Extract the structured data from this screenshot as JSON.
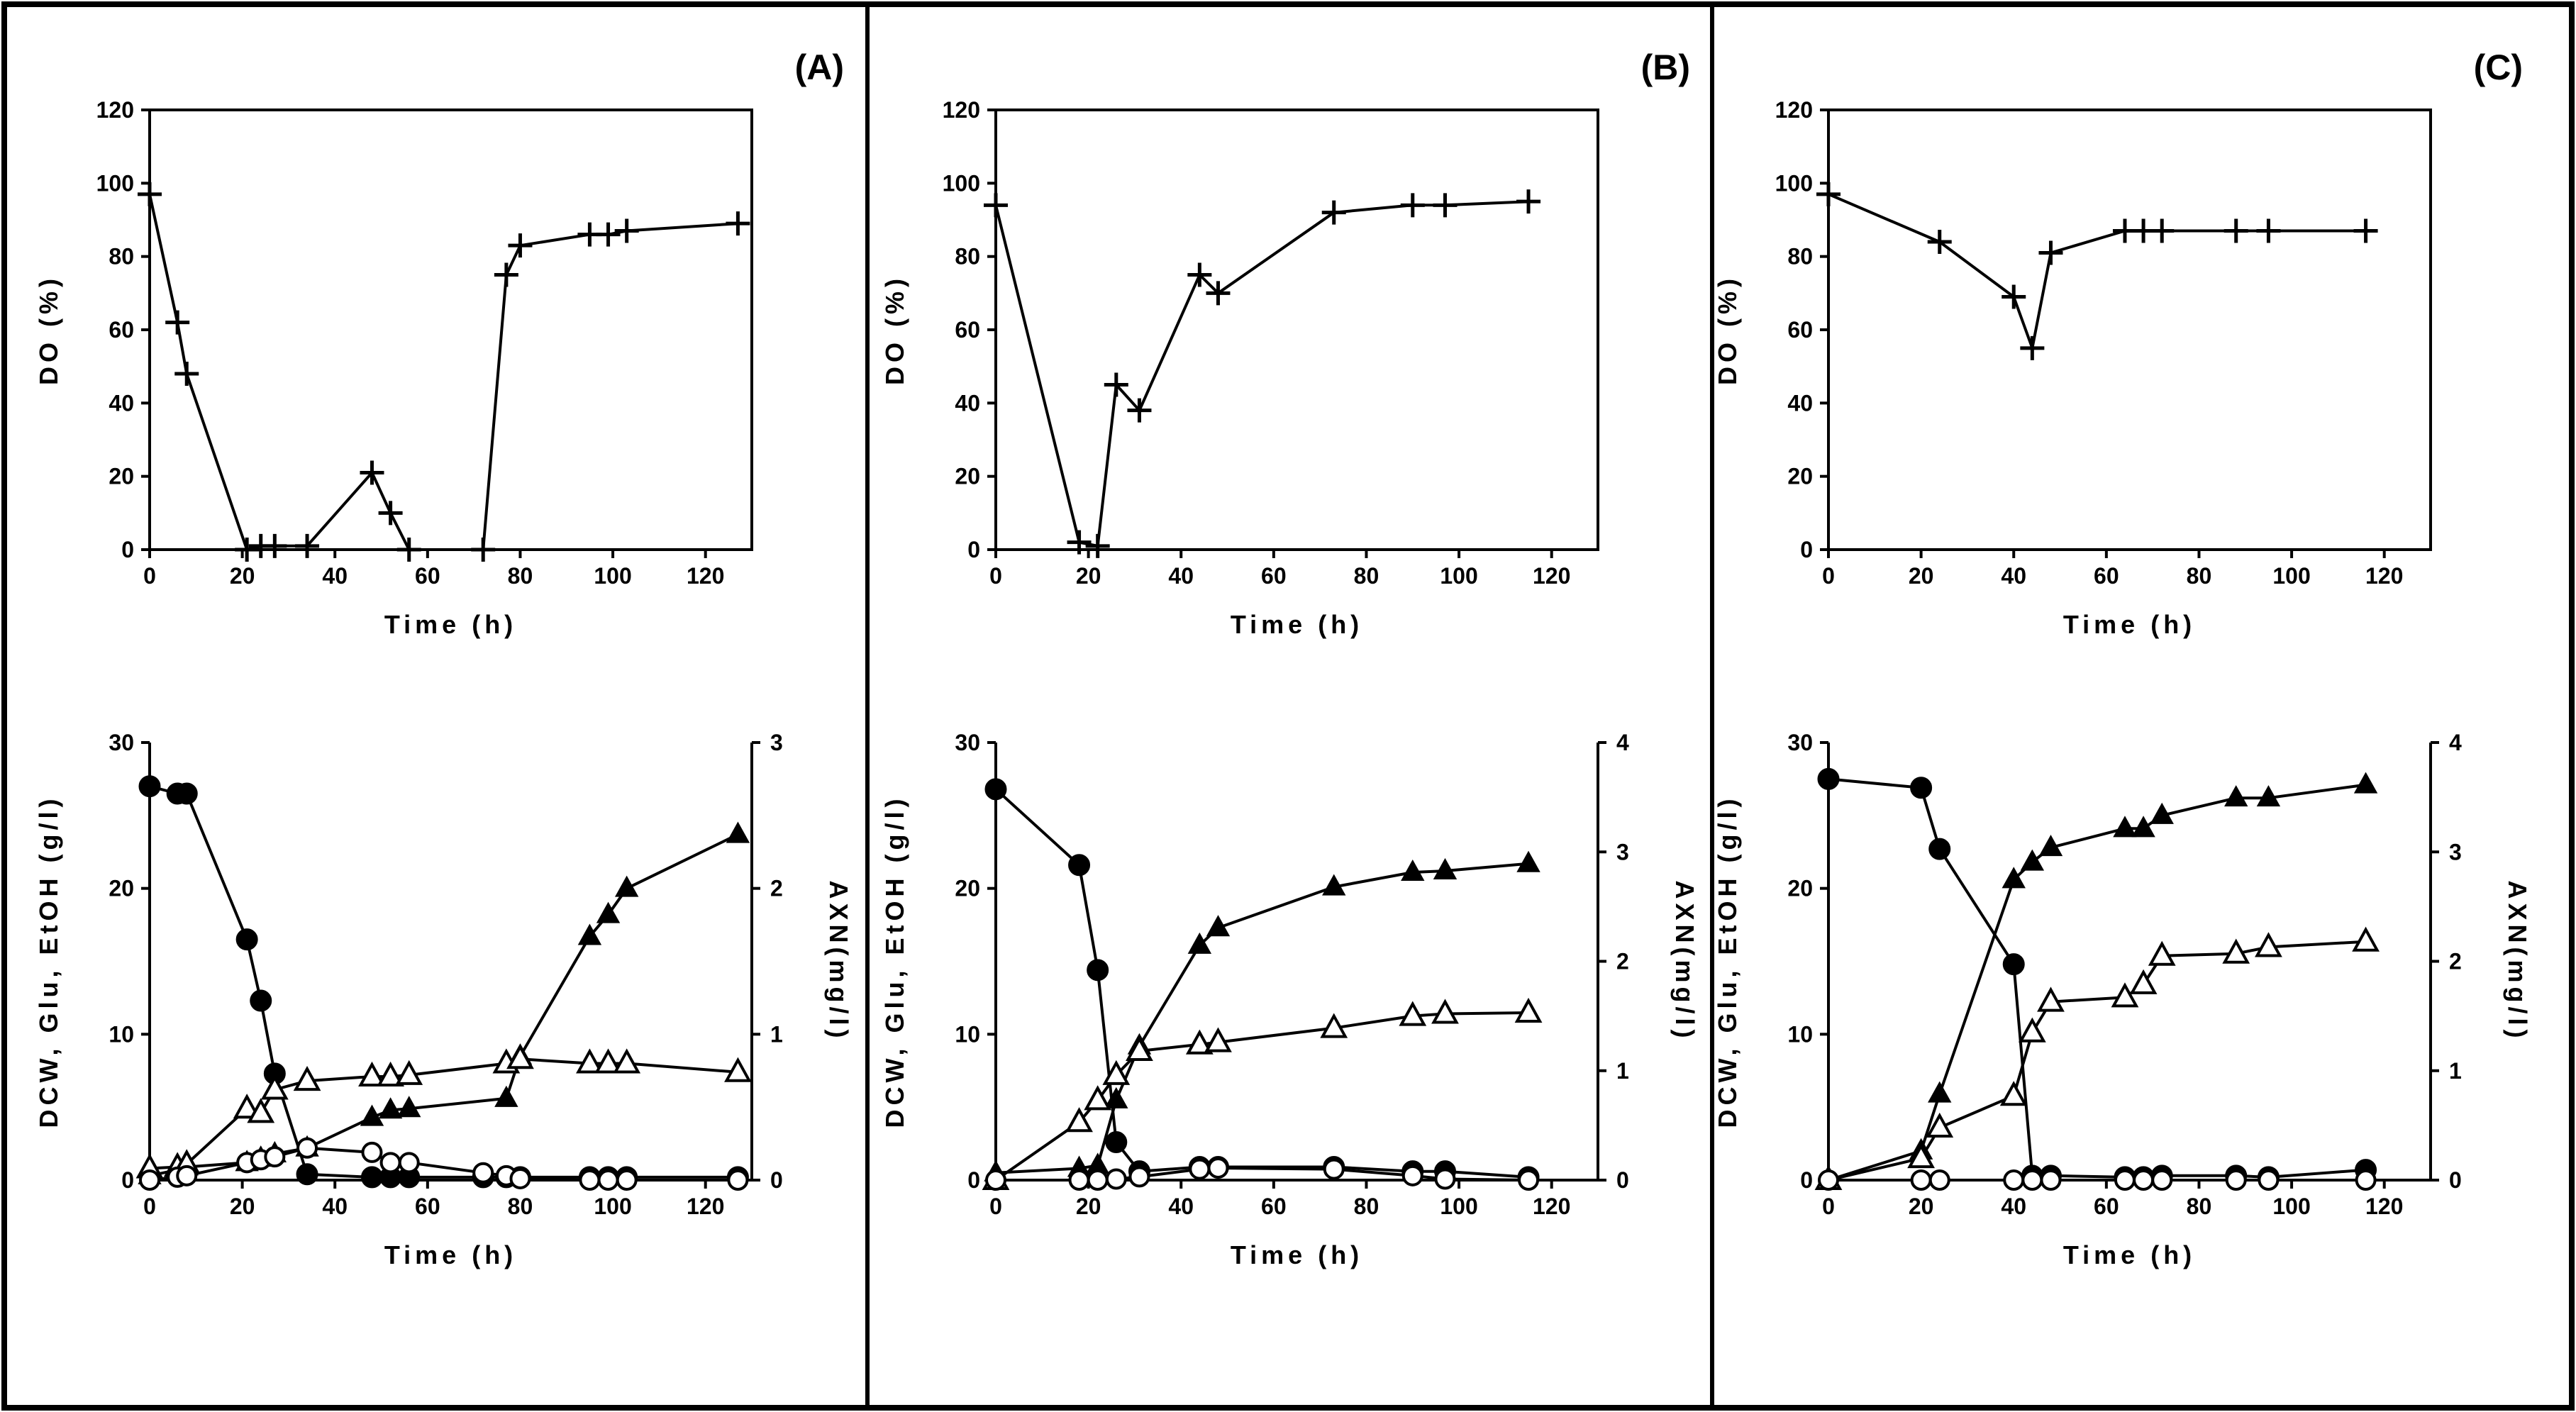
{
  "panels": [
    {
      "letter": "(A)",
      "do_chart": {
        "type": "line",
        "xlabel": "Time (h)",
        "ylabel": "DO (%)",
        "xlim": [
          0,
          130
        ],
        "ylim": [
          0,
          120
        ],
        "xticks": [
          0,
          20,
          40,
          60,
          80,
          100,
          120
        ],
        "yticks": [
          0,
          20,
          40,
          60,
          80,
          100,
          120
        ],
        "series": [
          {
            "marker": "plus",
            "x": [
              0,
              6,
              8,
              21,
              24,
              27,
              34,
              48,
              52,
              56,
              72,
              77,
              80,
              95,
              99,
              103,
              127
            ],
            "y": [
              97,
              62,
              48,
              0,
              1,
              1,
              1,
              21,
              10,
              0,
              0,
              75,
              83,
              86,
              86,
              87,
              89
            ]
          }
        ]
      },
      "bottom_chart": {
        "type": "line",
        "xlabel": "Time (h)",
        "ylabel": "DCW, Glu, EtOH (g/l)",
        "y2label": "AXN(mg/l)",
        "xlim": [
          0,
          130
        ],
        "ylim": [
          0,
          30
        ],
        "y2lim": [
          0,
          3
        ],
        "xticks": [
          0,
          20,
          40,
          60,
          80,
          100,
          120
        ],
        "yticks": [
          0,
          10,
          20,
          30
        ],
        "y2ticks": [
          0,
          1,
          2,
          3
        ],
        "series": [
          {
            "marker": "filled-circle",
            "axis": "left",
            "x": [
              0,
              6,
              8,
              21,
              24,
              27,
              34,
              48,
              52,
              56,
              72,
              77,
              80,
              95,
              99,
              103,
              127
            ],
            "y": [
              27,
              26.5,
              26.5,
              16.5,
              12.3,
              7.3,
              0.4,
              0.2,
              0.2,
              0.2,
              0.2,
              0.2,
              0.2,
              0.2,
              0.2,
              0.2,
              0.2
            ]
          },
          {
            "marker": "filled-triangle",
            "axis": "left",
            "x": [
              0,
              6,
              8,
              21,
              24,
              27,
              34,
              48,
              52,
              56,
              77,
              80,
              95,
              99,
              103,
              127
            ],
            "y": [
              0.3,
              0.7,
              0.9,
              1.2,
              1.5,
              1.8,
              2.2,
              4.3,
              4.8,
              4.9,
              5.6,
              8.5,
              16.7,
              18.2,
              20,
              23.7
            ]
          },
          {
            "marker": "open-triangle",
            "axis": "left",
            "x": [
              0,
              6,
              8,
              21,
              24,
              27,
              34,
              48,
              52,
              56,
              77,
              80,
              95,
              99,
              103,
              127
            ],
            "y": [
              0.8,
              0.9,
              1.1,
              4.9,
              4.6,
              6.2,
              6.8,
              7.1,
              7.1,
              7.2,
              8,
              8.3,
              8,
              8,
              8,
              7.4
            ]
          },
          {
            "marker": "open-circle",
            "axis": "right",
            "x": [
              0,
              6,
              8,
              21,
              24,
              27,
              34,
              48,
              52,
              56,
              72,
              77,
              80,
              95,
              99,
              103,
              127
            ],
            "y": [
              0,
              0.02,
              0.03,
              0.12,
              0.14,
              0.16,
              0.22,
              0.19,
              0.12,
              0.12,
              0.05,
              0.03,
              0.01,
              0,
              0,
              0,
              0
            ]
          }
        ]
      }
    },
    {
      "letter": "(B)",
      "do_chart": {
        "type": "line",
        "xlabel": "Time (h)",
        "ylabel": "DO (%)",
        "xlim": [
          0,
          130
        ],
        "ylim": [
          0,
          120
        ],
        "xticks": [
          0,
          20,
          40,
          60,
          80,
          100,
          120
        ],
        "yticks": [
          0,
          20,
          40,
          60,
          80,
          100,
          120
        ],
        "series": [
          {
            "marker": "plus",
            "x": [
              0,
              18,
              22,
              26,
              31,
              44,
              48,
              73,
              90,
              97,
              115
            ],
            "y": [
              94,
              2,
              1,
              45,
              38,
              75,
              70,
              92,
              94,
              94,
              95
            ]
          }
        ]
      },
      "bottom_chart": {
        "type": "line",
        "xlabel": "Time (h)",
        "ylabel": "DCW, Glu, EtOH (g/l)",
        "y2label": "AXN(mg/l)",
        "xlim": [
          0,
          130
        ],
        "ylim": [
          0,
          30
        ],
        "y2lim": [
          0,
          4
        ],
        "xticks": [
          0,
          20,
          40,
          60,
          80,
          100,
          120
        ],
        "yticks": [
          0,
          10,
          20,
          30
        ],
        "y2ticks": [
          0,
          1,
          2,
          3,
          4
        ],
        "series": [
          {
            "marker": "filled-circle",
            "axis": "left",
            "x": [
              0,
              18,
              22,
              26,
              31,
              44,
              48,
              73,
              90,
              97,
              115
            ],
            "y": [
              26.8,
              21.6,
              14.4,
              2.6,
              0.6,
              0.9,
              0.9,
              0.9,
              0.6,
              0.6,
              0.2
            ]
          },
          {
            "marker": "filled-triangle",
            "axis": "left",
            "x": [
              0,
              18,
              22,
              26,
              31,
              44,
              48,
              73,
              90,
              97,
              115
            ],
            "y": [
              0.5,
              0.8,
              1,
              5.5,
              9.2,
              16.1,
              17.3,
              20.1,
              21.1,
              21.2,
              21.7
            ]
          },
          {
            "marker": "open-triangle",
            "axis": "right",
            "x": [
              0,
              18,
              22,
              26,
              31,
              44,
              48,
              73,
              90,
              97,
              115
            ],
            "y": [
              0,
              0.53,
              0.73,
              0.96,
              1.18,
              1.24,
              1.26,
              1.39,
              1.5,
              1.52,
              1.53
            ]
          },
          {
            "marker": "open-circle",
            "axis": "right",
            "x": [
              0,
              18,
              22,
              26,
              31,
              44,
              48,
              73,
              90,
              97,
              115
            ],
            "y": [
              0,
              0,
              0,
              0.01,
              0.03,
              0.1,
              0.11,
              0.1,
              0.04,
              0.01,
              0
            ]
          }
        ]
      }
    },
    {
      "letter": "(C)",
      "do_chart": {
        "type": "line",
        "xlabel": "Time (h)",
        "ylabel": "DO (%)",
        "xlim": [
          0,
          130
        ],
        "ylim": [
          0,
          120
        ],
        "xticks": [
          0,
          20,
          40,
          60,
          80,
          100,
          120
        ],
        "yticks": [
          0,
          20,
          40,
          60,
          80,
          100,
          120
        ],
        "series": [
          {
            "marker": "plus",
            "x": [
              0,
              24,
              40,
              44,
              48,
              64,
              68,
              72,
              88,
              95,
              116
            ],
            "y": [
              97,
              84,
              69,
              55,
              81,
              87,
              87,
              87,
              87,
              87,
              87
            ]
          }
        ]
      },
      "bottom_chart": {
        "type": "line",
        "xlabel": "Time (h)",
        "ylabel": "DCW, Glu, EtOH (g/l)",
        "y2label": "AXN(mg/l)",
        "xlim": [
          0,
          130
        ],
        "ylim": [
          0,
          30
        ],
        "y2lim": [
          0,
          4
        ],
        "xticks": [
          0,
          20,
          40,
          60,
          80,
          100,
          120
        ],
        "yticks": [
          0,
          10,
          20,
          30
        ],
        "y2ticks": [
          0,
          1,
          2,
          3,
          4
        ],
        "series": [
          {
            "marker": "filled-circle",
            "axis": "left",
            "x": [
              0,
              20,
              24,
              40,
              44,
              48,
              64,
              68,
              72,
              88,
              95,
              116
            ],
            "y": [
              27.5,
              26.9,
              22.7,
              14.8,
              0.3,
              0.3,
              0.2,
              0.2,
              0.3,
              0.3,
              0.2,
              0.7
            ]
          },
          {
            "marker": "filled-triangle",
            "axis": "left",
            "x": [
              0,
              20,
              24,
              40,
              44,
              48,
              64,
              68,
              72,
              88,
              95,
              116
            ],
            "y": [
              0,
              2,
              5.9,
              20.6,
              21.8,
              22.8,
              24.1,
              24.1,
              25,
              26.2,
              26.2,
              27.1
            ]
          },
          {
            "marker": "open-triangle",
            "axis": "right",
            "x": [
              0,
              20,
              24,
              40,
              44,
              48,
              64,
              68,
              72,
              88,
              95,
              116
            ],
            "y": [
              0,
              0.2,
              0.48,
              0.77,
              1.35,
              1.63,
              1.67,
              1.79,
              2.05,
              2.07,
              2.13,
              2.18
            ]
          },
          {
            "marker": "open-circle",
            "axis": "right",
            "x": [
              0,
              20,
              24,
              40,
              44,
              48,
              64,
              68,
              72,
              88,
              95,
              116
            ],
            "y": [
              0,
              0,
              0,
              0,
              0,
              0,
              0,
              0,
              0,
              0,
              0,
              0
            ]
          }
        ]
      }
    }
  ],
  "chart_data": [
    {
      "panel": "(A)",
      "type": "line",
      "xlabel": "Time (h)",
      "ylabel": "DO (%)",
      "xlim": [
        0,
        130
      ],
      "ylim": [
        0,
        120
      ]
    },
    {
      "panel": "(A)",
      "type": "line",
      "xlabel": "Time (h)",
      "ylabel": "DCW, Glu, EtOH (g/l)",
      "y2label": "AXN(mg/l)",
      "ylim": [
        0,
        30
      ],
      "y2lim": [
        0,
        3
      ]
    },
    {
      "panel": "(B)",
      "type": "line",
      "xlabel": "Time (h)",
      "ylabel": "DO (%)",
      "xlim": [
        0,
        130
      ],
      "ylim": [
        0,
        120
      ]
    },
    {
      "panel": "(B)",
      "type": "line",
      "xlabel": "Time (h)",
      "ylabel": "DCW, Glu, EtOH (g/l)",
      "y2label": "AXN(mg/l)",
      "ylim": [
        0,
        30
      ],
      "y2lim": [
        0,
        4
      ]
    },
    {
      "panel": "(C)",
      "type": "line",
      "xlabel": "Time (h)",
      "ylabel": "DO (%)",
      "xlim": [
        0,
        130
      ],
      "ylim": [
        0,
        120
      ]
    },
    {
      "panel": "(C)",
      "type": "line",
      "xlabel": "Time (h)",
      "ylabel": "DCW, Glu, EtOH (g/l)",
      "y2label": "AXN(mg/l)",
      "ylim": [
        0,
        30
      ],
      "y2lim": [
        0,
        4
      ]
    }
  ]
}
